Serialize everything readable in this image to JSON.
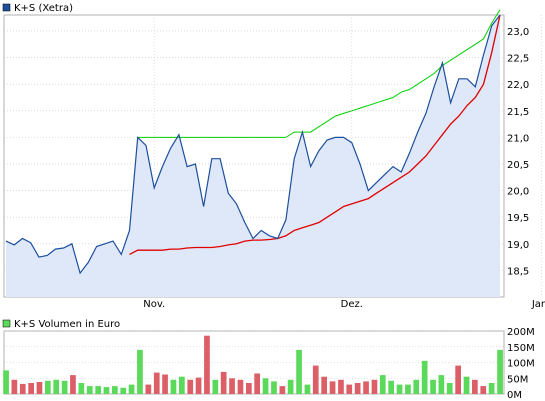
{
  "chart_data": [
    {
      "type": "line",
      "legend": {
        "label": "K+S (Xetra)",
        "position": "top-left"
      },
      "colors": {
        "price": "#1c4f9c",
        "area_fill": "#dfe8f8",
        "upper_band": "#00d000",
        "lower_band": "#e00000",
        "grid": "#c8c8c8"
      },
      "x_categories": [
        "Nov.",
        "Dez.",
        "Jan."
      ],
      "x_tick_index": [
        18,
        42,
        65
      ],
      "y_ticks": [
        "18,5",
        "19,0",
        "19,5",
        "20,0",
        "20,5",
        "21,0",
        "21,5",
        "22,0",
        "22,5",
        "23,0"
      ],
      "ylim": [
        18.0,
        23.3
      ],
      "grid": true,
      "price": [
        19.05,
        18.98,
        19.1,
        19.02,
        18.75,
        18.78,
        18.9,
        18.92,
        19.0,
        18.45,
        18.65,
        18.95,
        19.0,
        19.05,
        18.8,
        19.25,
        21.0,
        20.85,
        20.05,
        20.45,
        20.8,
        21.05,
        20.45,
        20.5,
        19.7,
        20.6,
        20.6,
        19.95,
        19.75,
        19.4,
        19.1,
        19.25,
        19.15,
        19.1,
        19.45,
        20.6,
        21.1,
        20.45,
        20.75,
        20.95,
        21.0,
        21.0,
        20.9,
        20.5,
        20.0,
        20.15,
        20.3,
        20.45,
        20.35,
        20.7,
        21.1,
        21.45,
        21.95,
        22.4,
        21.65,
        22.1,
        22.1,
        21.95,
        22.55,
        23.1,
        23.3
      ],
      "upper_band": [
        null,
        null,
        null,
        null,
        null,
        null,
        null,
        null,
        null,
        null,
        null,
        null,
        null,
        null,
        null,
        null,
        21.0,
        21.0,
        21.0,
        21.0,
        21.0,
        21.0,
        21.0,
        21.0,
        21.0,
        21.0,
        21.0,
        21.0,
        21.0,
        21.0,
        21.0,
        21.0,
        21.0,
        21.0,
        21.0,
        21.1,
        21.1,
        21.1,
        21.2,
        21.3,
        21.4,
        21.45,
        21.5,
        21.55,
        21.6,
        21.65,
        21.7,
        21.75,
        21.85,
        21.9,
        22.0,
        22.1,
        22.2,
        22.35,
        22.45,
        22.55,
        22.65,
        22.75,
        22.85,
        23.15,
        23.4
      ],
      "lower_band": [
        null,
        null,
        null,
        null,
        null,
        null,
        null,
        null,
        null,
        null,
        null,
        null,
        null,
        null,
        null,
        18.8,
        18.88,
        18.88,
        18.88,
        18.88,
        18.9,
        18.9,
        18.92,
        18.93,
        18.93,
        18.93,
        18.95,
        18.98,
        19.0,
        19.05,
        19.07,
        19.07,
        19.08,
        19.1,
        19.15,
        19.25,
        19.3,
        19.35,
        19.4,
        19.5,
        19.6,
        19.7,
        19.75,
        19.8,
        19.85,
        19.95,
        20.05,
        20.15,
        20.25,
        20.35,
        20.5,
        20.65,
        20.85,
        21.05,
        21.25,
        21.4,
        21.6,
        21.75,
        22.0,
        22.6,
        23.3
      ]
    },
    {
      "type": "bar",
      "legend": {
        "label": "K+S Volumen in Euro",
        "position": "top-left"
      },
      "colors": {
        "up": "#5bd95b",
        "down": "#dc5f67",
        "grid": "#c8c8c8"
      },
      "y_ticks": [
        "0M",
        "50M",
        "100M",
        "150M",
        "200M"
      ],
      "ylim": [
        0,
        200
      ],
      "grid": true,
      "volume": [
        75,
        45,
        32,
        35,
        38,
        42,
        45,
        42,
        60,
        35,
        25,
        25,
        22,
        25,
        20,
        30,
        140,
        30,
        68,
        62,
        45,
        55,
        45,
        52,
        185,
        45,
        70,
        50,
        45,
        35,
        65,
        50,
        40,
        25,
        45,
        140,
        30,
        90,
        55,
        40,
        45,
        30,
        35,
        40,
        45,
        60,
        42,
        30,
        30,
        45,
        105,
        45,
        60,
        35,
        90,
        55,
        45,
        25,
        35,
        140
      ],
      "direction": [
        "up",
        "down",
        "down",
        "down",
        "down",
        "up",
        "up",
        "up",
        "down",
        "up",
        "up",
        "up",
        "up",
        "up",
        "up",
        "up",
        "up",
        "down",
        "down",
        "down",
        "up",
        "up",
        "down",
        "down",
        "down",
        "up",
        "down",
        "down",
        "down",
        "down",
        "down",
        "up",
        "up",
        "down",
        "up",
        "up",
        "up",
        "down",
        "down",
        "down",
        "down",
        "down",
        "down",
        "down",
        "down",
        "up",
        "up",
        "up",
        "up",
        "up",
        "up",
        "up",
        "up",
        "up",
        "down",
        "up",
        "down",
        "down",
        "up",
        "up"
      ]
    }
  ]
}
